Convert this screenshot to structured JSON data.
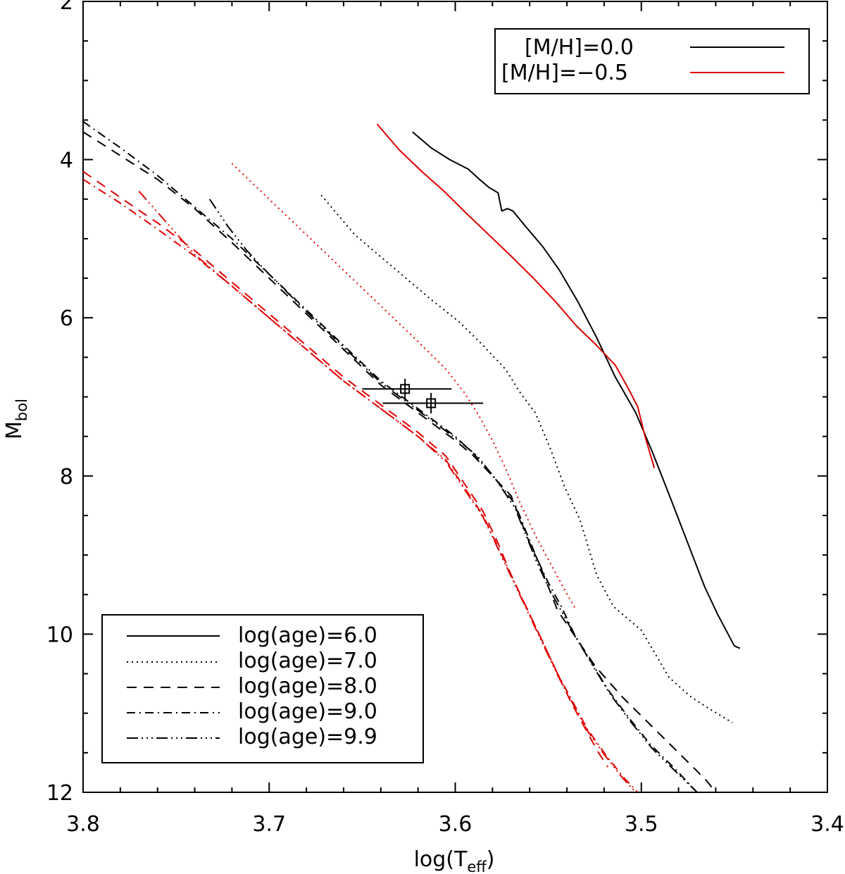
{
  "chart_data": {
    "type": "line",
    "xlabel": "log(T",
    "xlabel_sub": "eff",
    "xlabel_close": ")",
    "ylabel": "M",
    "ylabel_sub": "bol",
    "xlim": [
      3.8,
      3.4
    ],
    "ylim": [
      12,
      2
    ],
    "y_inverted": true,
    "x_ticks": [
      "3.8",
      "3.7",
      "3.6",
      "3.5",
      "3.4"
    ],
    "y_ticks": [
      "2",
      "4",
      "6",
      "8",
      "10",
      "12"
    ],
    "grid": false,
    "metallicity_legend": {
      "placement": "top-right",
      "entries": [
        {
          "label": "[M/H]=0.0",
          "color": "#000000"
        },
        {
          "label": "[M/H]=−0.5",
          "color": "#e00000"
        }
      ]
    },
    "age_legend": {
      "placement": "bottom-left",
      "entries": [
        {
          "label": "log(age)=6.0",
          "dash": "solid"
        },
        {
          "label": "log(age)=7.0",
          "dash": "dotted"
        },
        {
          "label": "log(age)=8.0",
          "dash": "dashed"
        },
        {
          "label": "log(age)=9.0",
          "dash": "dashdot"
        },
        {
          "label": "log(age)=9.9",
          "dash": "dashdotdotdot"
        }
      ]
    },
    "series": [
      {
        "metallicity": "0.0",
        "age": "6.0",
        "color": "#000000",
        "dash": "solid",
        "points": [
          [
            3.623,
            3.65
          ],
          [
            3.613,
            3.85
          ],
          [
            3.603,
            4.0
          ],
          [
            3.593,
            4.12
          ],
          [
            3.587,
            4.25
          ],
          [
            3.582,
            4.35
          ],
          [
            3.577,
            4.42
          ],
          [
            3.575,
            4.65
          ],
          [
            3.572,
            4.62
          ],
          [
            3.569,
            4.65
          ],
          [
            3.562,
            4.85
          ],
          [
            3.553,
            5.1
          ],
          [
            3.544,
            5.4
          ],
          [
            3.534,
            5.8
          ],
          [
            3.524,
            6.25
          ],
          [
            3.514,
            6.75
          ],
          [
            3.503,
            7.2
          ],
          [
            3.494,
            7.7
          ],
          [
            3.484,
            8.3
          ],
          [
            3.475,
            8.85
          ],
          [
            3.466,
            9.4
          ],
          [
            3.459,
            9.75
          ],
          [
            3.45,
            10.15
          ],
          [
            3.447,
            10.18
          ]
        ]
      },
      {
        "metallicity": "0.0",
        "age": "7.0",
        "color": "#000000",
        "dash": "dotted",
        "points": [
          [
            3.672,
            4.45
          ],
          [
            3.654,
            4.95
          ],
          [
            3.634,
            5.35
          ],
          [
            3.614,
            5.75
          ],
          [
            3.598,
            6.05
          ],
          [
            3.585,
            6.35
          ],
          [
            3.573,
            6.65
          ],
          [
            3.565,
            6.95
          ],
          [
            3.557,
            7.2
          ],
          [
            3.549,
            7.65
          ],
          [
            3.541,
            8.15
          ],
          [
            3.533,
            8.55
          ],
          [
            3.524,
            9.25
          ],
          [
            3.515,
            9.65
          ],
          [
            3.5,
            9.95
          ],
          [
            3.485,
            10.55
          ],
          [
            3.473,
            10.8
          ],
          [
            3.463,
            10.95
          ],
          [
            3.451,
            11.12
          ]
        ]
      },
      {
        "metallicity": "0.0",
        "age": "8.0",
        "color": "#000000",
        "dash": "dashed",
        "points": [
          [
            3.8,
            3.65
          ],
          [
            3.78,
            3.95
          ],
          [
            3.76,
            4.25
          ],
          [
            3.74,
            4.62
          ],
          [
            3.72,
            5.05
          ],
          [
            3.7,
            5.5
          ],
          [
            3.68,
            5.95
          ],
          [
            3.66,
            6.4
          ],
          [
            3.64,
            6.85
          ],
          [
            3.62,
            7.2
          ],
          [
            3.6,
            7.55
          ],
          [
            3.59,
            7.75
          ],
          [
            3.58,
            8.0
          ],
          [
            3.57,
            8.25
          ],
          [
            3.565,
            8.55
          ],
          [
            3.56,
            8.85
          ],
          [
            3.555,
            9.1
          ],
          [
            3.55,
            9.4
          ],
          [
            3.545,
            9.7
          ],
          [
            3.535,
            10.05
          ],
          [
            3.525,
            10.4
          ],
          [
            3.51,
            10.8
          ],
          [
            3.495,
            11.15
          ],
          [
            3.48,
            11.5
          ],
          [
            3.465,
            11.85
          ],
          [
            3.46,
            12.0
          ]
        ]
      },
      {
        "metallicity": "0.0",
        "age": "9.0",
        "color": "#000000",
        "dash": "dashdot",
        "points": [
          [
            3.8,
            3.52
          ],
          [
            3.78,
            3.85
          ],
          [
            3.76,
            4.2
          ],
          [
            3.74,
            4.6
          ],
          [
            3.72,
            5.0
          ],
          [
            3.7,
            5.45
          ],
          [
            3.68,
            5.9
          ],
          [
            3.66,
            6.35
          ],
          [
            3.64,
            6.8
          ],
          [
            3.62,
            7.15
          ],
          [
            3.6,
            7.5
          ],
          [
            3.59,
            7.72
          ],
          [
            3.578,
            8.05
          ],
          [
            3.568,
            8.35
          ],
          [
            3.562,
            8.7
          ],
          [
            3.556,
            9.05
          ],
          [
            3.55,
            9.35
          ],
          [
            3.543,
            9.65
          ],
          [
            3.536,
            10.0
          ],
          [
            3.527,
            10.35
          ],
          [
            3.518,
            10.7
          ],
          [
            3.507,
            11.05
          ],
          [
            3.495,
            11.4
          ],
          [
            3.482,
            11.7
          ],
          [
            3.47,
            12.0
          ]
        ]
      },
      {
        "metallicity": "0.0",
        "age": "9.9",
        "color": "#000000",
        "dash": "dashdotdotdot",
        "points": [
          [
            3.732,
            4.5
          ],
          [
            3.722,
            4.85
          ],
          [
            3.712,
            5.15
          ],
          [
            3.7,
            5.45
          ],
          [
            3.68,
            5.92
          ],
          [
            3.66,
            6.37
          ],
          [
            3.64,
            6.82
          ],
          [
            3.62,
            7.17
          ],
          [
            3.6,
            7.52
          ],
          [
            3.588,
            7.75
          ],
          [
            3.578,
            8.05
          ],
          [
            3.568,
            8.4
          ],
          [
            3.562,
            8.75
          ],
          [
            3.556,
            9.1
          ],
          [
            3.549,
            9.45
          ],
          [
            3.542,
            9.75
          ],
          [
            3.535,
            10.05
          ],
          [
            3.526,
            10.4
          ],
          [
            3.517,
            10.75
          ],
          [
            3.506,
            11.1
          ],
          [
            3.494,
            11.45
          ],
          [
            3.481,
            11.75
          ],
          [
            3.47,
            12.0
          ]
        ]
      },
      {
        "metallicity": "-0.5",
        "age": "6.0",
        "color": "#e00000",
        "dash": "solid",
        "points": [
          [
            3.642,
            3.55
          ],
          [
            3.63,
            3.88
          ],
          [
            3.618,
            4.15
          ],
          [
            3.606,
            4.4
          ],
          [
            3.594,
            4.68
          ],
          [
            3.582,
            4.95
          ],
          [
            3.57,
            5.22
          ],
          [
            3.558,
            5.5
          ],
          [
            3.546,
            5.8
          ],
          [
            3.535,
            6.1
          ],
          [
            3.524,
            6.35
          ],
          [
            3.514,
            6.6
          ],
          [
            3.508,
            6.85
          ],
          [
            3.502,
            7.12
          ],
          [
            3.498,
            7.5
          ],
          [
            3.493,
            7.9
          ]
        ]
      },
      {
        "metallicity": "-0.5",
        "age": "7.0",
        "color": "#e00000",
        "dash": "dotted",
        "points": [
          [
            3.72,
            4.05
          ],
          [
            3.7,
            4.5
          ],
          [
            3.68,
            4.95
          ],
          [
            3.66,
            5.4
          ],
          [
            3.64,
            5.85
          ],
          [
            3.62,
            6.3
          ],
          [
            3.605,
            6.65
          ],
          [
            3.595,
            6.95
          ],
          [
            3.587,
            7.25
          ],
          [
            3.58,
            7.55
          ],
          [
            3.573,
            7.9
          ],
          [
            3.565,
            8.35
          ],
          [
            3.557,
            8.75
          ],
          [
            3.549,
            9.1
          ],
          [
            3.541,
            9.45
          ],
          [
            3.535,
            9.7
          ]
        ]
      },
      {
        "metallicity": "-0.5",
        "age": "8.0",
        "color": "#e00000",
        "dash": "dashed",
        "points": [
          [
            3.8,
            4.15
          ],
          [
            3.78,
            4.48
          ],
          [
            3.76,
            4.8
          ],
          [
            3.74,
            5.15
          ],
          [
            3.72,
            5.55
          ],
          [
            3.7,
            5.95
          ],
          [
            3.68,
            6.35
          ],
          [
            3.66,
            6.75
          ],
          [
            3.64,
            7.1
          ],
          [
            3.62,
            7.45
          ],
          [
            3.605,
            7.75
          ],
          [
            3.595,
            8.1
          ],
          [
            3.585,
            8.45
          ],
          [
            3.577,
            8.85
          ],
          [
            3.57,
            9.25
          ],
          [
            3.562,
            9.65
          ],
          [
            3.554,
            10.05
          ],
          [
            3.546,
            10.45
          ],
          [
            3.538,
            10.85
          ],
          [
            3.53,
            11.2
          ],
          [
            3.523,
            11.5
          ],
          [
            3.518,
            11.68
          ]
        ]
      },
      {
        "metallicity": "-0.5",
        "age": "9.0",
        "color": "#e00000",
        "dash": "dashdot",
        "points": [
          [
            3.8,
            4.25
          ],
          [
            3.78,
            4.55
          ],
          [
            3.76,
            4.88
          ],
          [
            3.74,
            5.22
          ],
          [
            3.72,
            5.6
          ],
          [
            3.7,
            6.0
          ],
          [
            3.68,
            6.4
          ],
          [
            3.66,
            6.8
          ],
          [
            3.64,
            7.15
          ],
          [
            3.62,
            7.5
          ],
          [
            3.605,
            7.8
          ],
          [
            3.595,
            8.15
          ],
          [
            3.585,
            8.5
          ],
          [
            3.577,
            8.9
          ],
          [
            3.569,
            9.3
          ],
          [
            3.561,
            9.7
          ],
          [
            3.553,
            10.1
          ],
          [
            3.545,
            10.5
          ],
          [
            3.537,
            10.85
          ],
          [
            3.529,
            11.2
          ],
          [
            3.52,
            11.5
          ],
          [
            3.51,
            11.8
          ],
          [
            3.502,
            12.0
          ]
        ]
      },
      {
        "metallicity": "-0.5",
        "age": "9.9",
        "color": "#e00000",
        "dash": "dashdotdotdot",
        "points": [
          [
            3.77,
            4.4
          ],
          [
            3.755,
            4.8
          ],
          [
            3.74,
            5.2
          ],
          [
            3.72,
            5.6
          ],
          [
            3.7,
            6.0
          ],
          [
            3.68,
            6.4
          ],
          [
            3.66,
            6.8
          ],
          [
            3.64,
            7.15
          ],
          [
            3.62,
            7.5
          ],
          [
            3.605,
            7.82
          ],
          [
            3.595,
            8.17
          ],
          [
            3.585,
            8.52
          ],
          [
            3.577,
            8.92
          ],
          [
            3.569,
            9.32
          ],
          [
            3.561,
            9.72
          ],
          [
            3.553,
            10.12
          ],
          [
            3.545,
            10.52
          ],
          [
            3.537,
            10.87
          ],
          [
            3.529,
            11.22
          ],
          [
            3.52,
            11.52
          ],
          [
            3.51,
            11.82
          ],
          [
            3.503,
            12.0
          ]
        ]
      }
    ],
    "data_points": [
      {
        "x": 3.627,
        "y": 6.9,
        "xerr_low": 0.023,
        "xerr_high": 0.025,
        "yerr": 0.13
      },
      {
        "x": 3.613,
        "y": 7.08,
        "xerr_low": 0.026,
        "xerr_high": 0.028,
        "yerr": 0.13
      }
    ]
  }
}
